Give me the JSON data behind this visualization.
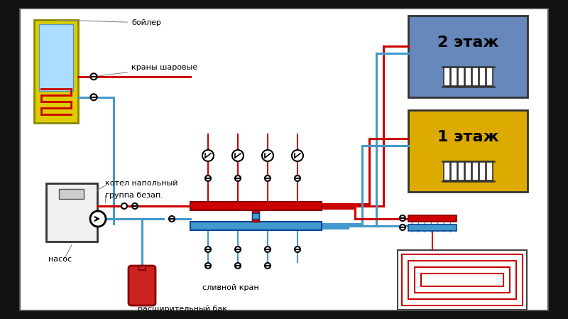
{
  "hot": "#cc0000",
  "cold": "#4499cc",
  "floor2_bg": "#6688bb",
  "floor1_bg": "#ddaa00",
  "boiler_yellow": "#ddcc00",
  "boiler_blue": "#aaddff",
  "exp_tank": "#cc2222",
  "white": "#ffffff",
  "black": "#111111",
  "gray_light": "#f0f0f0",
  "gray_mid": "#cccccc",
  "pipe_lw": 2.2,
  "lw_thin": 1.5,
  "label_fs": 8,
  "floor_fs": 16,
  "labels": {
    "boiler": "бойлер",
    "ball_valves": "краны шаровые",
    "floor_boiler": "котел напольный",
    "safety_group": "группа безап.",
    "pump": "насос",
    "drain_valve": "сливной кран",
    "expansion_tank": "расширительный бак",
    "floor2": "2 этаж",
    "floor1": "1 этаж"
  }
}
